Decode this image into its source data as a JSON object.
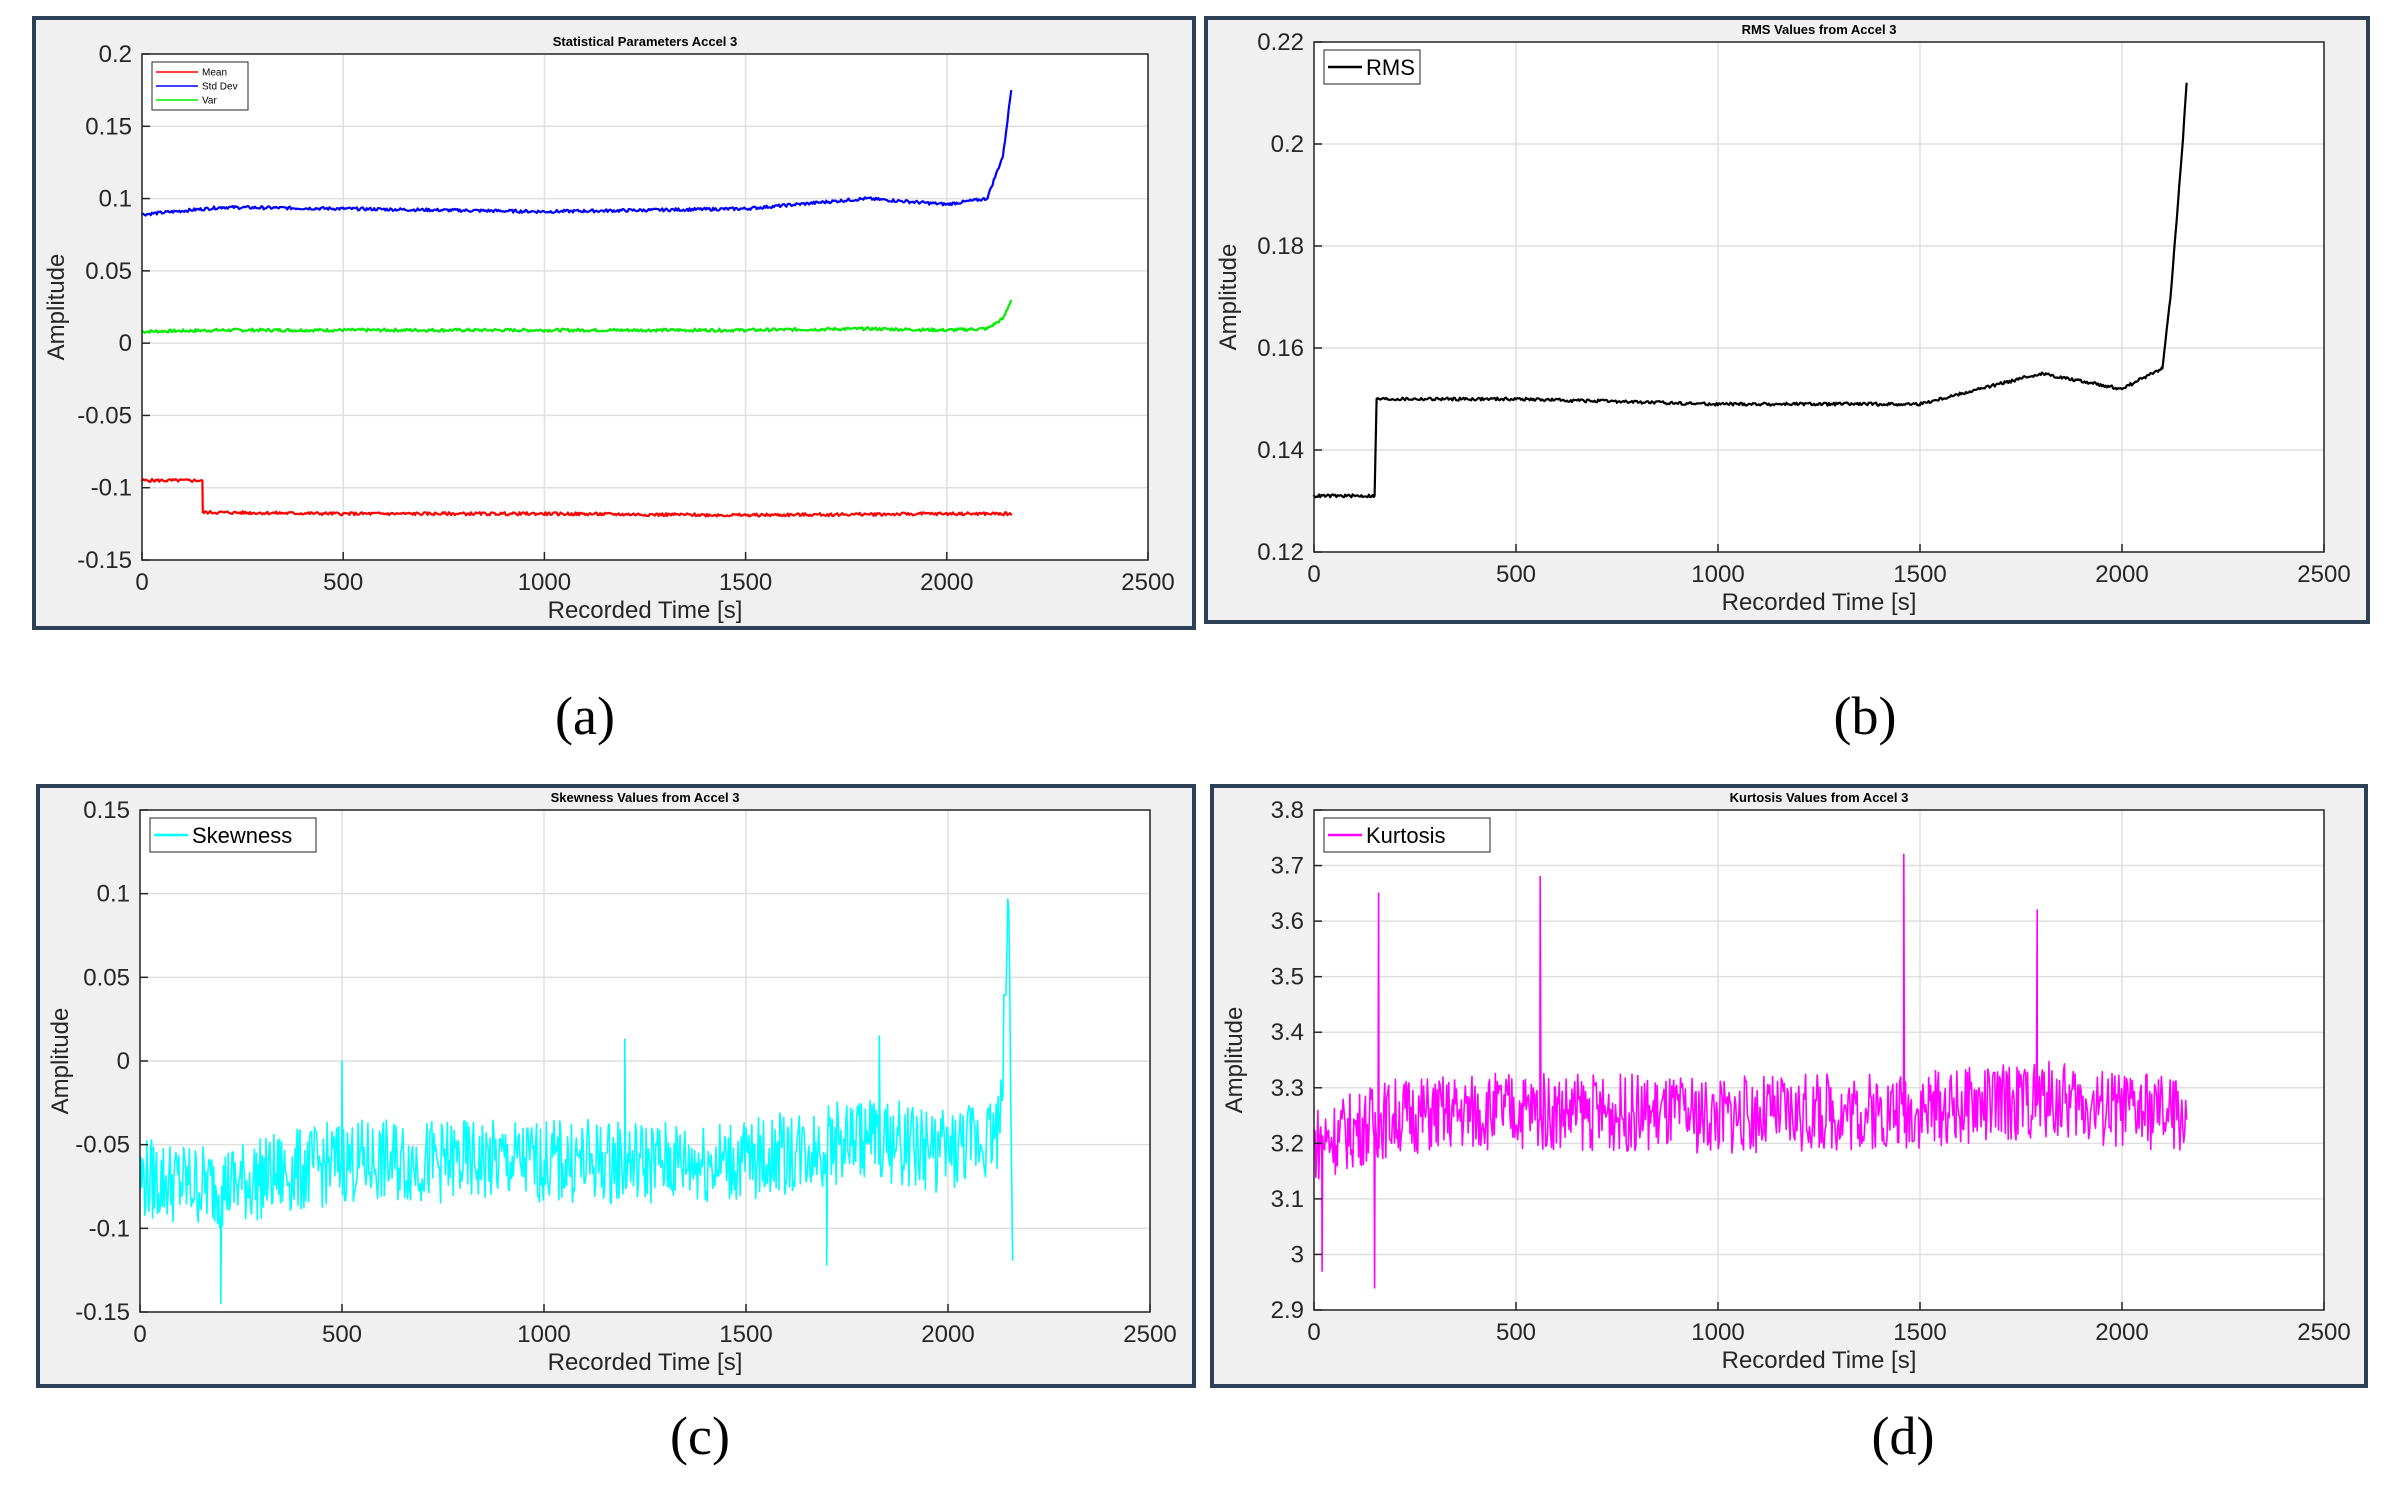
{
  "panels": [
    {
      "caption": "(a)",
      "chart": {
        "type": "line",
        "title": "Statistical Parameters Accel 3",
        "xlabel": "Recorded Time [s]",
        "ylabel": "Amplitude",
        "xlim": [
          0,
          2500
        ],
        "ylim": [
          -0.15,
          0.2
        ],
        "xticks": [
          0,
          500,
          1000,
          1500,
          2000,
          2500
        ],
        "xtick_labels": [
          "0",
          "500",
          "1000",
          "1500",
          "2000",
          "2500"
        ],
        "yticks": [
          -0.15,
          -0.1,
          -0.05,
          0,
          0.05,
          0.1,
          0.15,
          0.2
        ],
        "ytick_labels": [
          "-0.15",
          "-0.1",
          "-0.05",
          "0",
          "0.05",
          "0.1",
          "0.15",
          "0.2"
        ],
        "grid": true,
        "legend_position": "top-left",
        "series": [
          {
            "name": "Mean",
            "color": "#ff0000",
            "x": [
              0,
              150,
              151,
              500,
              1000,
              1500,
              2000,
              2160
            ],
            "y": [
              -0.095,
              -0.095,
              -0.117,
              -0.118,
              -0.118,
              -0.119,
              -0.118,
              -0.118
            ]
          },
          {
            "name": "Std Dev",
            "color": "#0000ff",
            "x": [
              0,
              200,
              500,
              1000,
              1500,
              1800,
              2000,
              2100,
              2140,
              2160
            ],
            "y": [
              0.089,
              0.094,
              0.093,
              0.091,
              0.093,
              0.1,
              0.096,
              0.1,
              0.13,
              0.175
            ]
          },
          {
            "name": "Var",
            "color": "#00ee00",
            "x": [
              0,
              200,
              500,
              1000,
              1500,
              1800,
              2000,
              2100,
              2140,
              2160
            ],
            "y": [
              0.008,
              0.009,
              0.009,
              0.009,
              0.009,
              0.01,
              0.009,
              0.01,
              0.017,
              0.03
            ]
          }
        ]
      }
    },
    {
      "caption": "(b)",
      "chart": {
        "type": "line",
        "title": "RMS Values from Accel 3",
        "xlabel": "Recorded Time [s]",
        "ylabel": "Amplitude",
        "xlim": [
          0,
          2500
        ],
        "ylim": [
          0.12,
          0.22
        ],
        "xticks": [
          0,
          500,
          1000,
          1500,
          2000,
          2500
        ],
        "xtick_labels": [
          "0",
          "500",
          "1000",
          "1500",
          "2000",
          "2500"
        ],
        "yticks": [
          0.12,
          0.14,
          0.16,
          0.18,
          0.2,
          0.22
        ],
        "ytick_labels": [
          "0.12",
          "0.14",
          "0.16",
          "0.18",
          "0.2",
          "0.22"
        ],
        "grid": true,
        "legend_position": "top-left",
        "series": [
          {
            "name": "RMS",
            "color": "#000000",
            "x": [
              0,
              150,
              155,
              500,
              1000,
              1500,
              1800,
              2000,
              2100,
              2120,
              2140,
              2150,
              2160
            ],
            "y": [
              0.131,
              0.131,
              0.15,
              0.15,
              0.149,
              0.149,
              0.155,
              0.152,
              0.156,
              0.17,
              0.19,
              0.2,
              0.212
            ]
          }
        ]
      }
    },
    {
      "caption": "(c)",
      "chart": {
        "type": "line",
        "title": "Skewness Values from Accel 3",
        "xlabel": "Recorded Time [s]",
        "ylabel": "Amplitude",
        "xlim": [
          0,
          2500
        ],
        "ylim": [
          -0.15,
          0.15
        ],
        "xticks": [
          0,
          500,
          1000,
          1500,
          2000,
          2500
        ],
        "xtick_labels": [
          "0",
          "500",
          "1000",
          "1500",
          "2000",
          "2500"
        ],
        "yticks": [
          -0.15,
          -0.1,
          -0.05,
          0,
          0.05,
          0.1,
          0.15
        ],
        "ytick_labels": [
          "-0.15",
          "-0.1",
          "-0.05",
          "0",
          "0.05",
          "0.1",
          "0.15"
        ],
        "grid": true,
        "legend_position": "top-left",
        "series": [
          {
            "name": "Skewness",
            "color": "#00ffff",
            "x": [
              0,
              200,
              500,
              1000,
              1500,
              1800,
              2000,
              2130,
              2150,
              2160
            ],
            "y": [
              -0.07,
              -0.075,
              -0.06,
              -0.06,
              -0.06,
              -0.045,
              -0.055,
              -0.04,
              0.1,
              -0.1
            ],
            "noise": 0.025,
            "spikes_up": [
              [
                1200,
                0.013
              ],
              [
                1830,
                0.015
              ],
              [
                500,
                0.0
              ]
            ],
            "spikes_down": [
              [
                200,
                -0.145
              ],
              [
                1700,
                -0.122
              ]
            ]
          }
        ]
      }
    },
    {
      "caption": "(d)",
      "chart": {
        "type": "line",
        "title": "Kurtosis Values from Accel 3",
        "xlabel": "Recorded Time [s]",
        "ylabel": "Amplitude",
        "xlim": [
          0,
          2500
        ],
        "ylim": [
          2.9,
          3.8
        ],
        "xticks": [
          0,
          500,
          1000,
          1500,
          2000,
          2500
        ],
        "xtick_labels": [
          "0",
          "500",
          "1000",
          "1500",
          "2000",
          "2500"
        ],
        "yticks": [
          2.9,
          3,
          3.1,
          3.2,
          3.3,
          3.4,
          3.5,
          3.6,
          3.7,
          3.8
        ],
        "ytick_labels": [
          "2.9",
          "3",
          "3.1",
          "3.2",
          "3.3",
          "3.4",
          "3.5",
          "3.6",
          "3.7",
          "3.8"
        ],
        "grid": true,
        "legend_position": "top-left",
        "series": [
          {
            "name": "Kurtosis",
            "color": "#ff00ff",
            "x": [
              0,
              200,
              500,
              1000,
              1500,
              1800,
              2000,
              2160
            ],
            "y": [
              3.2,
              3.25,
              3.26,
              3.25,
              3.26,
              3.28,
              3.26,
              3.25
            ],
            "noise": 0.07,
            "spikes_up": [
              [
                1460,
                3.72
              ],
              [
                560,
                3.68
              ],
              [
                1790,
                3.62
              ],
              [
                160,
                3.65
              ]
            ],
            "spikes_down": [
              [
                150,
                2.94
              ],
              [
                20,
                2.97
              ]
            ]
          }
        ]
      }
    }
  ]
}
